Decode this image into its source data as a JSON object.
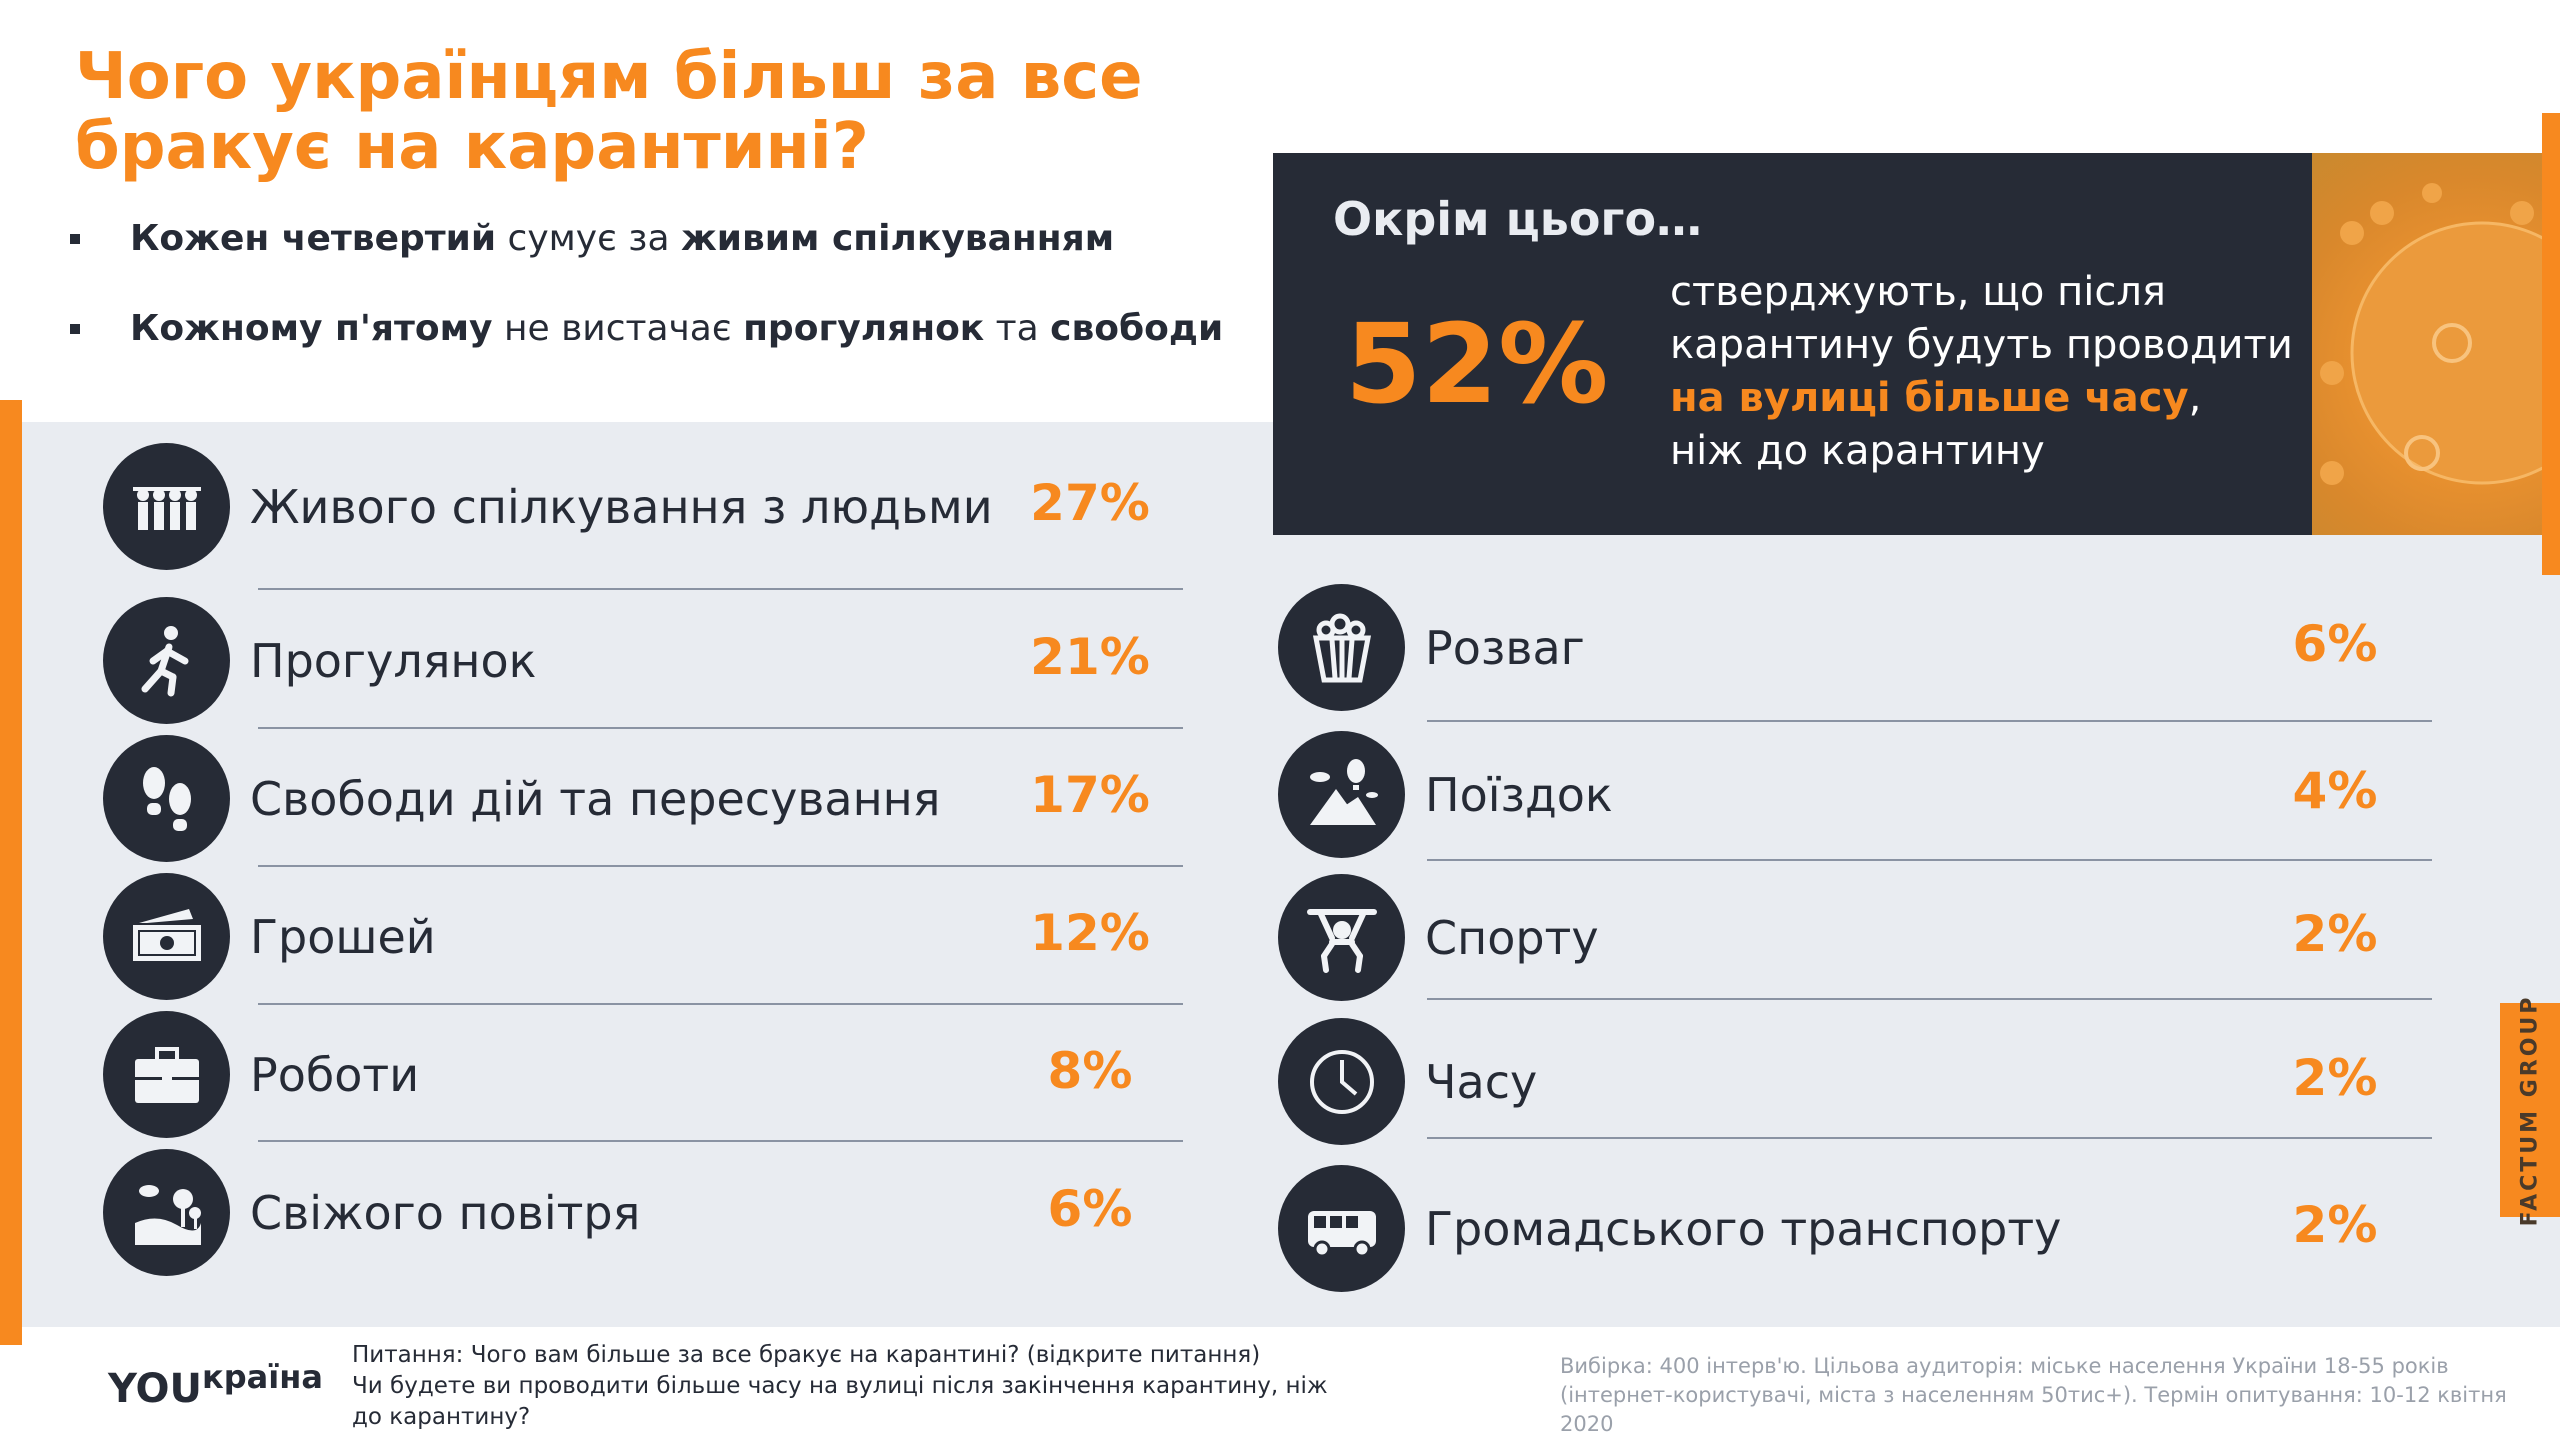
{
  "title": "Чого українцям більш за все бракує на карантині?",
  "bullets": [
    {
      "b1": "Кожен четвертий",
      "t1": " сумує за ",
      "b2": "живим спілкуванням",
      "t2": "",
      "b3": "",
      "t3": ""
    },
    {
      "b1": "Кожному п'ятому",
      "t1": " не вистачає ",
      "b2": "прогулянок",
      "t2": " та ",
      "b3": "свободи",
      "t3": ""
    }
  ],
  "highlight": {
    "heading": "Окрім цього…",
    "percent": "52%",
    "line1": "стверджують, що після",
    "line2": "карантину будуть проводити",
    "emph": "на вулиці більше часу",
    "comma": ",",
    "line4": "ніж до карантину"
  },
  "left_items": [
    {
      "icon": "people-icon",
      "label": "Живого спілкування з людьми",
      "pct": "27%"
    },
    {
      "icon": "walking-person-icon",
      "label": "Прогулянок",
      "pct": "21%"
    },
    {
      "icon": "footprints-icon",
      "label": "Свободи дій та пересування",
      "pct": "17%"
    },
    {
      "icon": "money-icon",
      "label": "Грошей",
      "pct": "12%"
    },
    {
      "icon": "briefcase-icon",
      "label": "Роботи",
      "pct": "8%"
    },
    {
      "icon": "landscape-icon",
      "label": "Свіжого повітря",
      "pct": "6%"
    }
  ],
  "right_items": [
    {
      "icon": "popcorn-icon",
      "label": "Розваг",
      "pct": "6%"
    },
    {
      "icon": "mountain-balloon-icon",
      "label": "Поїздок",
      "pct": "4%"
    },
    {
      "icon": "weightlifter-icon",
      "label": "Спорту",
      "pct": "2%"
    },
    {
      "icon": "clock-icon",
      "label": "Часу",
      "pct": "2%"
    },
    {
      "icon": "bus-icon",
      "label": "Громадського транспорту",
      "pct": "2%"
    }
  ],
  "factum": "FACTUM GROUP",
  "logo": {
    "a": "YOU",
    "b": "країна"
  },
  "footer": {
    "question": "Питання: Чого вам більше за все бракує на карантині? (відкрите питання)",
    "question2": "Чи будете ви проводити більше часу на вулиці після закінчення карантину, ніж до карантину?",
    "sample": "Вибірка: 400 інтерв'ю. Цільова аудиторія: міське населення України 18-55 років (інтернет-користувачі, міста з населенням 50тис+). Термін опитування: 10-12 квітня 2020"
  },
  "colors": {
    "accent": "#f7891f",
    "dark": "#262b36",
    "panel": "#e9ecf1"
  }
}
